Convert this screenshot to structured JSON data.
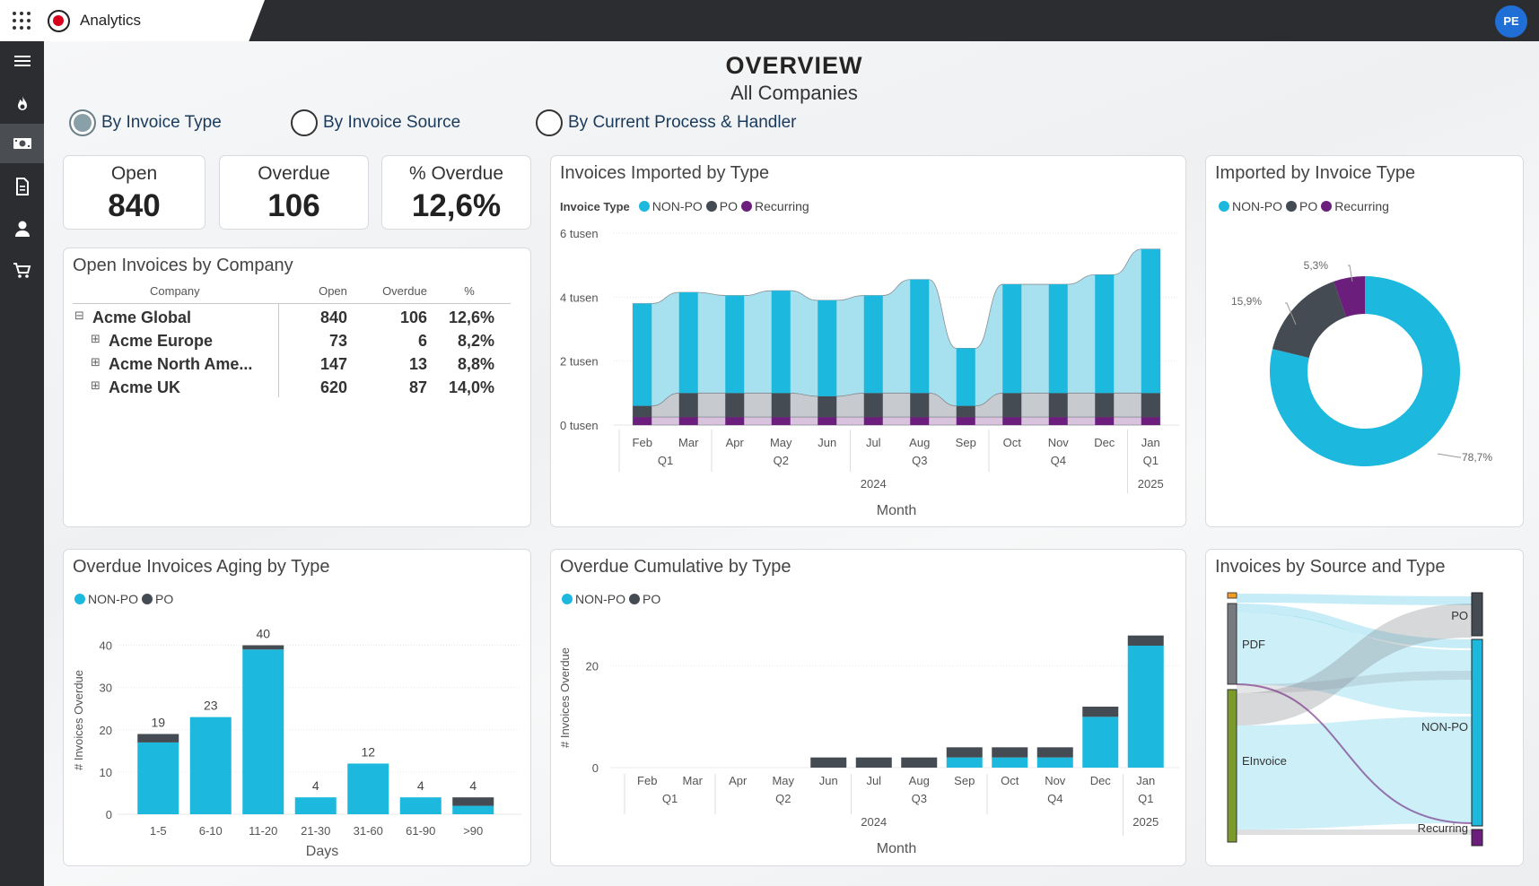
{
  "app": {
    "title": "Analytics",
    "avatar_initials": "PE"
  },
  "colors": {
    "non_po": "#1db8de",
    "po": "#454b52",
    "recurring": "#6b1e7b",
    "einvoice": "#7a9a2a",
    "pdf": "#777b80",
    "orange": "#f29a1f"
  },
  "nav": {
    "icons": [
      "menu-icon",
      "fire-icon",
      "cash-icon",
      "document-icon",
      "person-icon",
      "cart-icon"
    ]
  },
  "page": {
    "title": "OVERVIEW",
    "subtitle": "All Companies"
  },
  "toggles": [
    {
      "label": "By Invoice Type",
      "selected": true
    },
    {
      "label": "By Invoice Source",
      "selected": false
    },
    {
      "label": "By Current Process & Handler",
      "selected": false
    }
  ],
  "kpis": [
    {
      "label": "Open",
      "value": "840"
    },
    {
      "label": "Overdue",
      "value": "106"
    },
    {
      "label": "% Overdue",
      "value": "12,6%"
    }
  ],
  "company_table": {
    "title": "Open Invoices by Company",
    "headers": [
      "Company",
      "Open",
      "Overdue",
      "%"
    ],
    "rows": [
      {
        "expander": "⊟",
        "name": "Acme Global",
        "open": "840",
        "overdue": "106",
        "pct": "12,6%"
      },
      {
        "expander": "⊞",
        "name": "Acme Europe",
        "open": "73",
        "overdue": "6",
        "pct": "8,2%"
      },
      {
        "expander": "⊞",
        "name": "Acme North Ame...",
        "open": "147",
        "overdue": "13",
        "pct": "8,8%"
      },
      {
        "expander": "⊞",
        "name": "Acme UK",
        "open": "620",
        "overdue": "87",
        "pct": "14,0%"
      }
    ]
  },
  "chart_data": [
    {
      "id": "imported",
      "type": "bar",
      "title": "Invoices Imported by Type",
      "legend_title": "Invoice Type",
      "categories": [
        "Feb",
        "Mar",
        "Apr",
        "May",
        "Jun",
        "Jul",
        "Aug",
        "Sep",
        "Oct",
        "Nov",
        "Dec",
        "Jan"
      ],
      "quarters": [
        {
          "label": "Q1",
          "from": 0,
          "to": 1
        },
        {
          "label": "Q2",
          "from": 2,
          "to": 4
        },
        {
          "label": "Q3",
          "from": 5,
          "to": 7
        },
        {
          "label": "Q4",
          "from": 8,
          "to": 10
        },
        {
          "label": "Q1",
          "from": 11,
          "to": 11
        }
      ],
      "years": [
        {
          "label": "2024",
          "from": 0,
          "to": 10
        },
        {
          "label": "2025",
          "from": 11,
          "to": 11
        }
      ],
      "xlabel": "Month",
      "ylim": [
        0,
        6000
      ],
      "yticks": [
        {
          "v": 0,
          "label": "0 tusen"
        },
        {
          "v": 2000,
          "label": "2 tusen"
        },
        {
          "v": 4000,
          "label": "4 tusen"
        },
        {
          "v": 6000,
          "label": "6 tusen"
        }
      ],
      "series": [
        {
          "name": "Recurring",
          "values": [
            250,
            250,
            250,
            250,
            250,
            250,
            250,
            250,
            250,
            250,
            250,
            250
          ]
        },
        {
          "name": "PO",
          "values": [
            350,
            750,
            750,
            750,
            650,
            750,
            750,
            350,
            750,
            750,
            750,
            750
          ]
        },
        {
          "name": "NON-PO",
          "values": [
            3200,
            3150,
            3050,
            3200,
            3000,
            3050,
            3550,
            1800,
            3400,
            3400,
            3700,
            4500
          ]
        }
      ]
    },
    {
      "id": "donut",
      "type": "pie",
      "title": "Imported by Invoice Type",
      "slices": [
        {
          "name": "NON-PO",
          "value": 78.7,
          "label": "78,7%"
        },
        {
          "name": "PO",
          "value": 15.9,
          "label": "15,9%"
        },
        {
          "name": "Recurring",
          "value": 5.3,
          "label": "5,3%"
        }
      ]
    },
    {
      "id": "aging",
      "type": "bar",
      "title": "Overdue Invoices Aging by Type",
      "categories": [
        "1-5",
        "6-10",
        "11-20",
        "21-30",
        "31-60",
        "61-90",
        ">90"
      ],
      "xlabel": "Days",
      "ylabel": "# Invoices Overdue",
      "ylim": [
        0,
        45
      ],
      "yticks": [
        0,
        10,
        20,
        30,
        40
      ],
      "series": [
        {
          "name": "NON-PO",
          "values": [
            17,
            23,
            39,
            4,
            12,
            4,
            2
          ]
        },
        {
          "name": "PO",
          "values": [
            2,
            0,
            1,
            0,
            0,
            0,
            2
          ]
        }
      ],
      "totals": [
        "19",
        "23",
        "40",
        "4",
        "12",
        "4",
        "4"
      ]
    },
    {
      "id": "cumulative",
      "type": "bar",
      "title": "Overdue Cumulative by Type",
      "categories": [
        "Feb",
        "Mar",
        "Apr",
        "May",
        "Jun",
        "Jul",
        "Aug",
        "Sep",
        "Oct",
        "Nov",
        "Dec",
        "Jan"
      ],
      "quarters": [
        {
          "label": "Q1",
          "from": 0,
          "to": 1
        },
        {
          "label": "Q2",
          "from": 2,
          "to": 4
        },
        {
          "label": "Q3",
          "from": 5,
          "to": 7
        },
        {
          "label": "Q4",
          "from": 8,
          "to": 10
        },
        {
          "label": "Q1",
          "from": 11,
          "to": 11
        }
      ],
      "years": [
        {
          "label": "2024",
          "from": 0,
          "to": 10
        },
        {
          "label": "2025",
          "from": 11,
          "to": 11
        }
      ],
      "xlabel": "Month",
      "ylabel": "# Invoices Overdue",
      "ylim": [
        0,
        27
      ],
      "yticks": [
        0,
        20
      ],
      "series": [
        {
          "name": "NON-PO",
          "values": [
            0,
            0,
            0,
            0,
            0,
            0,
            0,
            2,
            2,
            2,
            10,
            24
          ]
        },
        {
          "name": "PO",
          "values": [
            0,
            0,
            0,
            0,
            2,
            2,
            2,
            2,
            2,
            2,
            2,
            2
          ]
        }
      ]
    },
    {
      "id": "sankey",
      "type": "sankey",
      "title": "Invoices by Source and Type",
      "sources": [
        "PDF",
        "EInvoice"
      ],
      "targets": [
        "PO",
        "NON-PO",
        "Recurring"
      ]
    }
  ]
}
